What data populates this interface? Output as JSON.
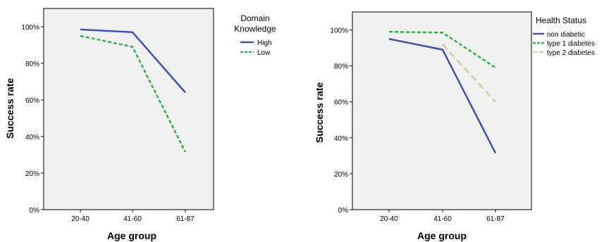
{
  "chart_data": [
    {
      "type": "line",
      "categories": [
        "20-40",
        "41-60",
        "61-87"
      ],
      "xlabel": "Age group",
      "ylabel": "Success rate",
      "ylim": [
        0,
        110
      ],
      "yticks": [
        "0%",
        "20%",
        "40%",
        "60%",
        "80%",
        "100%"
      ],
      "grid": false,
      "legend_title": [
        "Domain",
        "Knowledge"
      ],
      "legend_position": "right",
      "series": [
        {
          "name": "High",
          "values": [
            98.5,
            97,
            64
          ],
          "color": "#3f51b5",
          "dash": "solid"
        },
        {
          "name": "Low",
          "values": [
            95,
            89,
            31.5
          ],
          "color": "#2db34a",
          "dash": "dashed"
        }
      ]
    },
    {
      "type": "line",
      "categories": [
        "20-40",
        "41-60",
        "61-87"
      ],
      "xlabel": "Age group",
      "ylabel": "Success rate",
      "ylim": [
        0,
        110
      ],
      "yticks": [
        "0%",
        "20%",
        "40%",
        "60%",
        "80%",
        "100%"
      ],
      "grid": false,
      "legend_title": [
        "Health Status"
      ],
      "legend_position": "right",
      "series": [
        {
          "name": "non diabetic",
          "values": [
            95,
            89,
            31.5
          ],
          "color": "#3f51b5",
          "dash": "solid"
        },
        {
          "name": "type 1 diabetes",
          "values": [
            99,
            98.5,
            79
          ],
          "color": "#2db34a",
          "dash": "dashed"
        },
        {
          "name": "type 2 diabetes",
          "values": [
            null,
            92,
            60
          ],
          "color": "#d6cf9a",
          "dash": "longdash"
        }
      ]
    }
  ]
}
